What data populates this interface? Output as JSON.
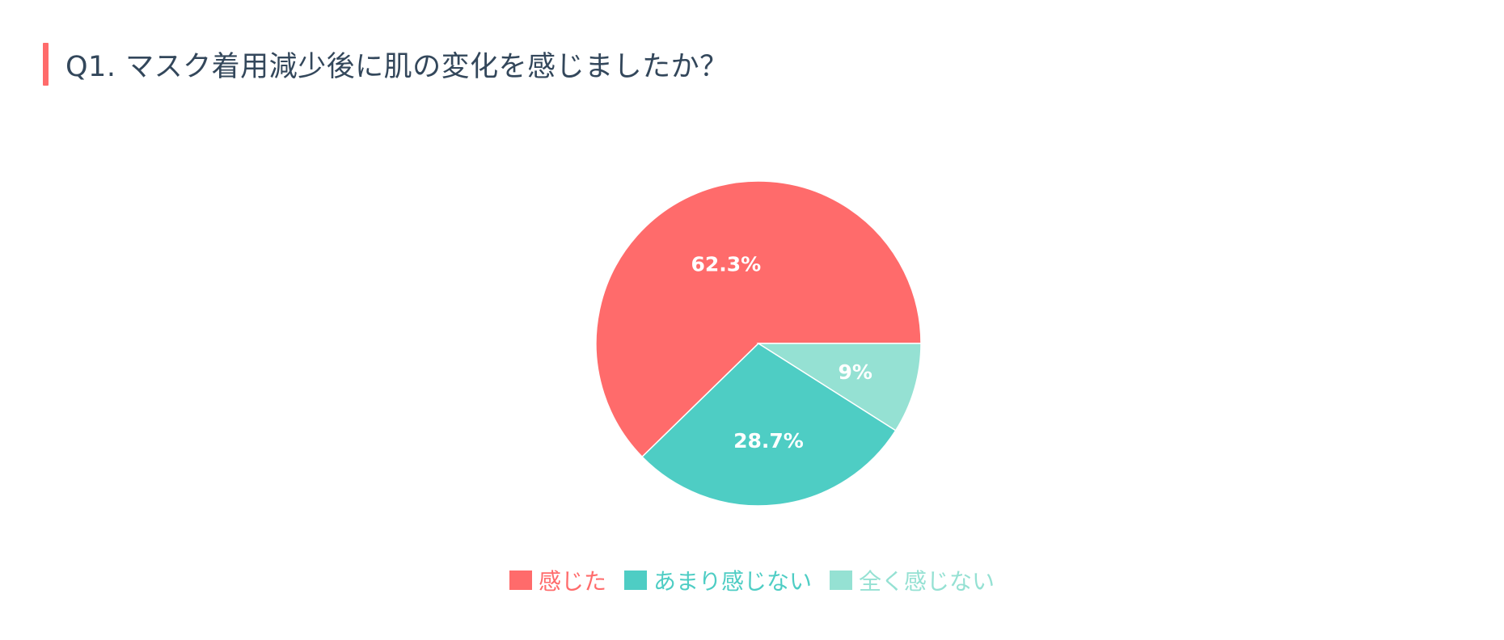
{
  "title": "Q1. マスク着用減少後に肌の変化を感じましたか？",
  "chart_data": {
    "type": "pie",
    "categories": [
      "感じた",
      "あまり感じない",
      "全く感じない"
    ],
    "values": [
      62.3,
      28.7,
      9
    ],
    "labels": [
      "62.3%",
      "28.7%",
      "9%"
    ],
    "colors": [
      "#ff6b6b",
      "#4ecdc4",
      "#95e1d3"
    ],
    "legend_position": "bottom"
  }
}
